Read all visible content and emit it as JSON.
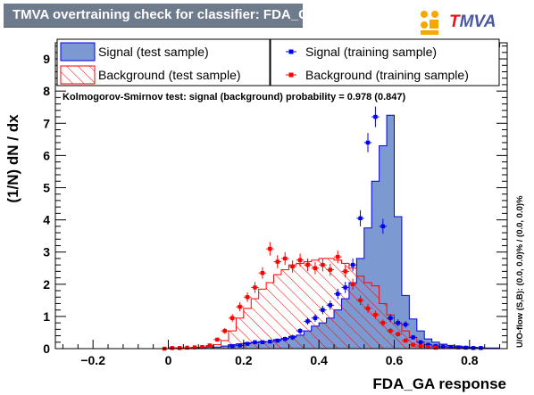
{
  "title": "TMVA overtraining check for classifier: FDA_GA",
  "logo_text_first": "T",
  "logo_text_rest": "MVA",
  "chart_data": {
    "type": "histogram",
    "xlabel": "FDA_GA response",
    "ylabel": "(1/N) dN  /  dx",
    "xlim": [
      -0.3,
      0.9
    ],
    "ylim": [
      0,
      9.5
    ],
    "xticks": [
      -0.2,
      0,
      0.2,
      0.4,
      0.6,
      0.8
    ],
    "xtick_labels": [
      "−0.2",
      "0",
      "0.2",
      "0.4",
      "0.6",
      "0.8"
    ],
    "yticks": [
      0,
      1,
      2,
      3,
      4,
      5,
      6,
      7,
      8,
      9
    ],
    "ks_text": "Kolmogorov-Smirnov test: signal (background) probability = 0.978 (0.847)",
    "overflow_text": "U/O-flow (S,B): (0.0, 0.0)% / (0.0, 0.0)%",
    "legend": [
      {
        "label": "Signal (test sample)",
        "style": "signal-fill"
      },
      {
        "label": "Signal (training sample)",
        "style": "signal-marker"
      },
      {
        "label": "Background (test sample)",
        "style": "background-hatch"
      },
      {
        "label": "Background (training sample)",
        "style": "background-marker"
      }
    ],
    "colors": {
      "signal_fill": "#7d99d1",
      "signal_line": "#0000ee",
      "background": "#ff0000"
    },
    "bin_width": 0.02,
    "signal_test": [
      [
        -0.02,
        0.0
      ],
      [
        0.0,
        0.02
      ],
      [
        0.02,
        0.02
      ],
      [
        0.04,
        0.02
      ],
      [
        0.06,
        0.03
      ],
      [
        0.08,
        0.03
      ],
      [
        0.1,
        0.05
      ],
      [
        0.12,
        0.05
      ],
      [
        0.14,
        0.08
      ],
      [
        0.16,
        0.12
      ],
      [
        0.18,
        0.15
      ],
      [
        0.2,
        0.18
      ],
      [
        0.22,
        0.18
      ],
      [
        0.24,
        0.22
      ],
      [
        0.26,
        0.22
      ],
      [
        0.28,
        0.28
      ],
      [
        0.3,
        0.32
      ],
      [
        0.32,
        0.38
      ],
      [
        0.34,
        0.42
      ],
      [
        0.36,
        0.55
      ],
      [
        0.38,
        0.7
      ],
      [
        0.4,
        0.8
      ],
      [
        0.42,
        0.95
      ],
      [
        0.44,
        1.2
      ],
      [
        0.46,
        1.55
      ],
      [
        0.48,
        2.05
      ],
      [
        0.5,
        2.8
      ],
      [
        0.52,
        3.75
      ],
      [
        0.54,
        5.2
      ],
      [
        0.56,
        6.3
      ],
      [
        0.58,
        7.25
      ],
      [
        0.6,
        4.1
      ],
      [
        0.62,
        1.65
      ],
      [
        0.64,
        0.92
      ],
      [
        0.66,
        0.55
      ],
      [
        0.68,
        0.3
      ],
      [
        0.7,
        0.2
      ],
      [
        0.72,
        0.14
      ],
      [
        0.74,
        0.1
      ],
      [
        0.76,
        0.08
      ],
      [
        0.78,
        0.06
      ],
      [
        0.8,
        0.04
      ],
      [
        0.82,
        0.03
      ],
      [
        0.84,
        0.02
      ],
      [
        0.86,
        0.02
      ],
      [
        0.88,
        0.0
      ]
    ],
    "background_test": [
      [
        0.0,
        0.02
      ],
      [
        0.02,
        0.02
      ],
      [
        0.04,
        0.02
      ],
      [
        0.06,
        0.03
      ],
      [
        0.08,
        0.04
      ],
      [
        0.1,
        0.08
      ],
      [
        0.12,
        0.12
      ],
      [
        0.14,
        0.25
      ],
      [
        0.16,
        0.55
      ],
      [
        0.18,
        0.95
      ],
      [
        0.2,
        1.25
      ],
      [
        0.22,
        1.55
      ],
      [
        0.24,
        1.85
      ],
      [
        0.26,
        2.05
      ],
      [
        0.28,
        2.3
      ],
      [
        0.3,
        2.45
      ],
      [
        0.32,
        2.6
      ],
      [
        0.34,
        2.65
      ],
      [
        0.36,
        2.7
      ],
      [
        0.38,
        2.75
      ],
      [
        0.4,
        2.8
      ],
      [
        0.42,
        2.8
      ],
      [
        0.44,
        2.75
      ],
      [
        0.46,
        2.65
      ],
      [
        0.48,
        2.5
      ],
      [
        0.5,
        2.25
      ],
      [
        0.52,
        2.05
      ],
      [
        0.54,
        1.95
      ],
      [
        0.56,
        1.4
      ],
      [
        0.58,
        1.05
      ],
      [
        0.6,
        0.78
      ],
      [
        0.62,
        0.55
      ],
      [
        0.64,
        0.35
      ],
      [
        0.66,
        0.2
      ],
      [
        0.68,
        0.12
      ],
      [
        0.7,
        0.08
      ],
      [
        0.72,
        0.05
      ],
      [
        0.74,
        0.03
      ],
      [
        0.76,
        0.02
      ],
      [
        0.78,
        0.01
      ]
    ],
    "signal_train": [
      [
        0.17,
        0.08,
        0.02
      ],
      [
        0.19,
        0.1,
        0.03
      ],
      [
        0.21,
        0.15,
        0.04
      ],
      [
        0.23,
        0.2,
        0.05
      ],
      [
        0.25,
        0.2,
        0.05
      ],
      [
        0.27,
        0.22,
        0.05
      ],
      [
        0.29,
        0.25,
        0.06
      ],
      [
        0.31,
        0.3,
        0.07
      ],
      [
        0.33,
        0.35,
        0.08
      ],
      [
        0.35,
        0.55,
        0.09
      ],
      [
        0.37,
        0.85,
        0.11
      ],
      [
        0.39,
        0.95,
        0.12
      ],
      [
        0.41,
        1.2,
        0.13
      ],
      [
        0.43,
        1.35,
        0.14
      ],
      [
        0.45,
        1.7,
        0.16
      ],
      [
        0.47,
        1.9,
        0.17
      ],
      [
        0.49,
        2.6,
        0.2
      ],
      [
        0.51,
        4.05,
        0.25
      ],
      [
        0.53,
        6.4,
        0.3
      ],
      [
        0.55,
        7.2,
        0.32
      ],
      [
        0.57,
        3.8,
        0.23
      ],
      [
        0.59,
        0.95,
        0.12
      ],
      [
        0.61,
        0.8,
        0.11
      ],
      [
        0.63,
        0.75,
        0.1
      ],
      [
        0.65,
        0.35,
        0.07
      ],
      [
        0.67,
        0.2,
        0.05
      ],
      [
        0.69,
        0.12,
        0.04
      ],
      [
        0.71,
        0.08,
        0.03
      ],
      [
        0.73,
        0.06,
        0.03
      ],
      [
        0.75,
        0.05,
        0.02
      ],
      [
        0.77,
        0.04,
        0.02
      ],
      [
        0.79,
        0.03,
        0.02
      ],
      [
        0.81,
        0.02,
        0.01
      ],
      [
        0.83,
        0.02,
        0.01
      ]
    ],
    "background_train": [
      [
        -0.01,
        0.0,
        0.01
      ],
      [
        0.01,
        0.02,
        0.01
      ],
      [
        0.03,
        0.02,
        0.01
      ],
      [
        0.05,
        0.03,
        0.02
      ],
      [
        0.07,
        0.04,
        0.02
      ],
      [
        0.09,
        0.05,
        0.02
      ],
      [
        0.11,
        0.1,
        0.03
      ],
      [
        0.13,
        0.28,
        0.06
      ],
      [
        0.15,
        0.55,
        0.09
      ],
      [
        0.17,
        0.95,
        0.12
      ],
      [
        0.19,
        1.3,
        0.14
      ],
      [
        0.21,
        1.6,
        0.15
      ],
      [
        0.23,
        1.9,
        0.17
      ],
      [
        0.25,
        2.35,
        0.18
      ],
      [
        0.27,
        3.1,
        0.21
      ],
      [
        0.29,
        2.7,
        0.2
      ],
      [
        0.31,
        2.8,
        0.2
      ],
      [
        0.33,
        2.55,
        0.19
      ],
      [
        0.35,
        2.75,
        0.2
      ],
      [
        0.37,
        2.6,
        0.2
      ],
      [
        0.39,
        2.5,
        0.19
      ],
      [
        0.41,
        2.6,
        0.2
      ],
      [
        0.43,
        2.45,
        0.19
      ],
      [
        0.45,
        2.85,
        0.2
      ],
      [
        0.47,
        2.4,
        0.19
      ],
      [
        0.49,
        2.0,
        0.17
      ],
      [
        0.51,
        1.5,
        0.15
      ],
      [
        0.53,
        1.25,
        0.14
      ],
      [
        0.55,
        1.05,
        0.13
      ],
      [
        0.57,
        0.8,
        0.11
      ],
      [
        0.59,
        0.55,
        0.09
      ],
      [
        0.61,
        0.45,
        0.08
      ],
      [
        0.63,
        0.25,
        0.06
      ],
      [
        0.65,
        0.12,
        0.04
      ],
      [
        0.67,
        0.08,
        0.03
      ],
      [
        0.69,
        0.05,
        0.02
      ],
      [
        0.71,
        0.03,
        0.02
      ]
    ]
  }
}
